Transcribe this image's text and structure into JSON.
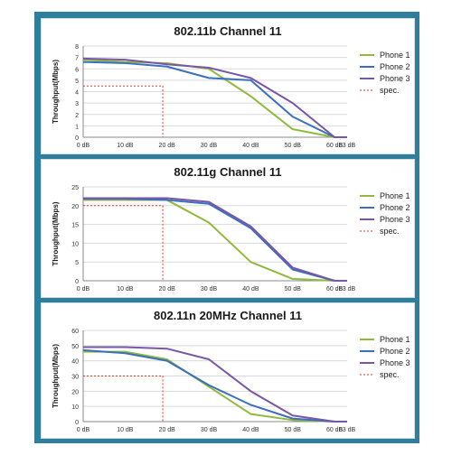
{
  "colors": {
    "frame": "#2e7f9c",
    "phone1": "#8fba3c",
    "phone2": "#3a6fbf",
    "phone3": "#7856a8",
    "spec": "#e03a2a",
    "grid": "#d9d9d9"
  },
  "chart_data": [
    {
      "type": "line",
      "title": "802.11b Channel 11",
      "xlabel": "",
      "ylabel": "Throughput(Mbps)",
      "categories": [
        "0 dB",
        "10 dB",
        "20 dB",
        "30 dB",
        "40 dB",
        "50 dB",
        "60 dB",
        "63 dB"
      ],
      "x": [
        0,
        10,
        20,
        30,
        40,
        50,
        60,
        63
      ],
      "xlim": [
        0,
        63
      ],
      "ylim": [
        0,
        8
      ],
      "yticks": [
        0,
        1,
        2,
        3,
        4,
        5,
        6,
        7,
        8
      ],
      "grid": true,
      "legend": "right",
      "series": [
        {
          "name": "Phone 1",
          "values": [
            6.8,
            6.6,
            6.5,
            6.0,
            3.6,
            0.7,
            0,
            0
          ]
        },
        {
          "name": "Phone 2",
          "values": [
            6.6,
            6.5,
            6.2,
            5.2,
            5.0,
            1.8,
            0,
            0
          ]
        },
        {
          "name": "Phone 3",
          "values": [
            6.9,
            6.8,
            6.4,
            6.1,
            5.2,
            3.0,
            0,
            0
          ]
        }
      ],
      "spec": {
        "name": "spec.",
        "x": 19,
        "y": 4.5
      }
    },
    {
      "type": "line",
      "title": "802.11g Channel 11",
      "xlabel": "",
      "ylabel": "Throughput(Mbps)",
      "categories": [
        "0 dB",
        "10 dB",
        "20 dB",
        "30 dB",
        "40 dB",
        "50 dB",
        "60 dB",
        "63 dB"
      ],
      "x": [
        0,
        10,
        20,
        30,
        40,
        50,
        60,
        63
      ],
      "xlim": [
        0,
        63
      ],
      "ylim": [
        0,
        25
      ],
      "yticks": [
        0,
        5,
        10,
        15,
        20,
        25
      ],
      "grid": true,
      "legend": "right",
      "series": [
        {
          "name": "Phone 1",
          "values": [
            21.5,
            21.5,
            21.5,
            15.5,
            5,
            0.5,
            0,
            0
          ]
        },
        {
          "name": "Phone 2",
          "values": [
            21.8,
            21.8,
            21.5,
            20.5,
            14,
            3,
            0,
            0
          ]
        },
        {
          "name": "Phone 3",
          "values": [
            22,
            22,
            22,
            21,
            14.5,
            3.5,
            0,
            0
          ]
        }
      ],
      "spec": {
        "name": "spec.",
        "x": 19,
        "y": 20
      }
    },
    {
      "type": "line",
      "title": "802.11n 20MHz Channel 11",
      "xlabel": "",
      "ylabel": "Throughput(Mbps)",
      "categories": [
        "0 dB",
        "10 dB",
        "20 dB",
        "30 dB",
        "40 dB",
        "50 dB",
        "60 dB",
        "63 dB"
      ],
      "x": [
        0,
        10,
        20,
        30,
        40,
        50,
        60,
        63
      ],
      "xlim": [
        0,
        63
      ],
      "ylim": [
        0,
        60
      ],
      "yticks": [
        0,
        10,
        20,
        30,
        40,
        50,
        60
      ],
      "grid": true,
      "legend": "right",
      "series": [
        {
          "name": "Phone 1",
          "values": [
            46,
            46,
            41,
            23,
            5,
            1,
            0,
            0
          ]
        },
        {
          "name": "Phone 2",
          "values": [
            47,
            45,
            40,
            24,
            11,
            2,
            0,
            0
          ]
        },
        {
          "name": "Phone 3",
          "values": [
            49,
            49,
            48,
            41,
            20,
            4,
            0,
            0
          ]
        }
      ],
      "spec": {
        "name": "spec.",
        "x": 19,
        "y": 30
      }
    }
  ]
}
